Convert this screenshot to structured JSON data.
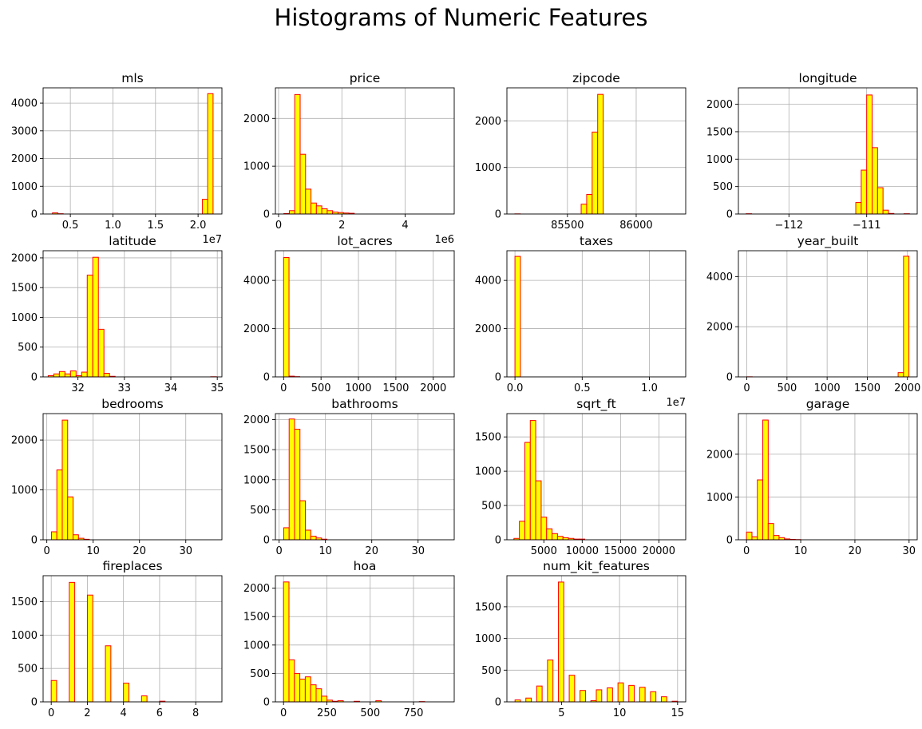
{
  "suptitle": "Histograms of Numeric Features",
  "style": {
    "bar_fill": "#ffff00",
    "bar_edge": "#ff0000",
    "grid_color": "#b0b0b0"
  },
  "chart_data": [
    {
      "type": "bar",
      "title": "mls",
      "grid": true,
      "xlim": [
        0.18,
        2.28
      ],
      "ylim": [
        0,
        4550
      ],
      "offset_text": "1e7",
      "xticks": [
        0.5,
        1.0,
        1.5,
        2.0
      ],
      "xtick_labels": [
        "0.5",
        "1.0",
        "1.5",
        "2.0"
      ],
      "yticks": [
        0,
        1000,
        2000,
        3000,
        4000
      ],
      "ytick_labels": [
        "0",
        "1000",
        "2000",
        "3000",
        "4000"
      ],
      "bin_edges": [
        0.29,
        2.176
      ],
      "bins": [
        [
          0.29,
          0.353,
          40
        ],
        [
          0.353,
          0.416,
          10
        ],
        [
          2.051,
          2.113,
          530
        ],
        [
          2.113,
          2.176,
          4340
        ]
      ]
    },
    {
      "type": "bar",
      "title": "price",
      "grid": true,
      "xlim": [
        -0.1,
        5.55
      ],
      "ylim": [
        0,
        2640
      ],
      "offset_text": "1e6",
      "xticks": [
        0,
        2,
        4
      ],
      "xtick_labels": [
        "0",
        "2",
        "4"
      ],
      "yticks": [
        0,
        1000,
        2000
      ],
      "ytick_labels": [
        "0",
        "1000",
        "2000"
      ],
      "bin_edges": [
        0.169,
        5.3
      ],
      "bins": [
        [
          0.169,
          0.34,
          10
        ],
        [
          0.34,
          0.511,
          70
        ],
        [
          0.511,
          0.682,
          2500
        ],
        [
          0.682,
          0.853,
          1250
        ],
        [
          0.853,
          1.024,
          520
        ],
        [
          1.024,
          1.195,
          230
        ],
        [
          1.195,
          1.366,
          170
        ],
        [
          1.366,
          1.537,
          110
        ],
        [
          1.537,
          1.708,
          70
        ],
        [
          1.708,
          1.879,
          40
        ],
        [
          1.879,
          2.05,
          30
        ],
        [
          2.05,
          2.221,
          20
        ],
        [
          2.221,
          2.392,
          15
        ]
      ]
    },
    {
      "type": "bar",
      "title": "zipcode",
      "grid": true,
      "xlim": [
        85060,
        86360
      ],
      "ylim": [
        0,
        2710
      ],
      "xticks": [
        85500,
        86000
      ],
      "xtick_labels": [
        "85500",
        "86000"
      ],
      "yticks": [
        0,
        1000,
        2000
      ],
      "ytick_labels": [
        "0",
        "1000",
        "2000"
      ],
      "bin_edges": [
        85118,
        86303
      ],
      "bins": [
        [
          85118,
          85157.5,
          3
        ],
        [
          85600,
          85640,
          210
        ],
        [
          85640,
          85680,
          420
        ],
        [
          85680,
          85720,
          1760
        ],
        [
          85720,
          85760,
          2570
        ]
      ]
    },
    {
      "type": "bar",
      "title": "longitude",
      "grid": true,
      "xlim": [
        -112.65,
        -110.35
      ],
      "ylim": [
        0,
        2300
      ],
      "xticks": [
        -112,
        -111,
        -110
      ],
      "xtick_labels": [
        "−112",
        "−111",
        "−110"
      ],
      "yticks": [
        0,
        500,
        1000,
        1500,
        2000
      ],
      "ytick_labels": [
        "0",
        "500",
        "1000",
        "1500",
        "2000"
      ],
      "bin_edges": [
        -112.55,
        -110.45
      ],
      "bins": [
        [
          -112.55,
          -112.48,
          5
        ],
        [
          -111.14,
          -111.07,
          210
        ],
        [
          -111.07,
          -111.0,
          800
        ],
        [
          -111.0,
          -110.93,
          2170
        ],
        [
          -110.93,
          -110.86,
          1210
        ],
        [
          -110.86,
          -110.79,
          480
        ],
        [
          -110.79,
          -110.72,
          70
        ],
        [
          -110.72,
          -110.65,
          10
        ],
        [
          -110.52,
          -110.45,
          5
        ]
      ]
    },
    {
      "type": "bar",
      "title": "latitude",
      "grid": true,
      "xlim": [
        31.25,
        35.1
      ],
      "ylim": [
        0,
        2120
      ],
      "xticks": [
        32,
        33,
        34,
        35
      ],
      "xtick_labels": [
        "32",
        "33",
        "34",
        "35"
      ],
      "yticks": [
        0,
        500,
        1000,
        1500,
        2000
      ],
      "ytick_labels": [
        "0",
        "500",
        "1000",
        "1500",
        "2000"
      ],
      "bin_edges": [
        31.36,
        34.98
      ],
      "bins": [
        [
          31.36,
          31.48,
          20
        ],
        [
          31.48,
          31.6,
          50
        ],
        [
          31.6,
          31.72,
          90
        ],
        [
          31.72,
          31.84,
          50
        ],
        [
          31.84,
          31.96,
          100
        ],
        [
          31.96,
          32.08,
          20
        ],
        [
          32.08,
          32.2,
          80
        ],
        [
          32.2,
          32.32,
          1710
        ],
        [
          32.32,
          32.44,
          2010
        ],
        [
          32.44,
          32.56,
          800
        ],
        [
          32.56,
          32.68,
          60
        ],
        [
          32.68,
          32.8,
          10
        ],
        [
          34.86,
          34.98,
          3
        ]
      ]
    },
    {
      "type": "bar",
      "title": "lot_acres",
      "grid": true,
      "xlim": [
        -110,
        2280
      ],
      "ylim": [
        0,
        5230
      ],
      "xticks": [
        0,
        500,
        1000,
        1500,
        2000
      ],
      "xtick_labels": [
        "0",
        "500",
        "1000",
        "1500",
        "2000"
      ],
      "yticks": [
        0,
        2000,
        4000
      ],
      "ytick_labels": [
        "0",
        "2000",
        "4000"
      ],
      "bin_edges": [
        0,
        2154
      ],
      "bins": [
        [
          0,
          71.8,
          4950
        ],
        [
          71.8,
          143.6,
          30
        ],
        [
          143.6,
          215.4,
          10
        ]
      ]
    },
    {
      "type": "bar",
      "title": "taxes",
      "grid": true,
      "xlim": [
        -0.06,
        1.27
      ],
      "ylim": [
        0,
        5230
      ],
      "offset_text": "1e7",
      "xticks": [
        0,
        0.5,
        1.0
      ],
      "xtick_labels": [
        "0.0",
        "0.5",
        "1.0"
      ],
      "yticks": [
        0,
        2000,
        4000
      ],
      "ytick_labels": [
        "0",
        "2000",
        "4000"
      ],
      "bin_edges": [
        0,
        1.22
      ],
      "bins": [
        [
          0,
          0.0407,
          4995
        ]
      ]
    },
    {
      "type": "bar",
      "title": "year_built",
      "grid": true,
      "xlim": [
        -105,
        2122
      ],
      "ylim": [
        0,
        5030
      ],
      "xticks": [
        0,
        500,
        1000,
        1500,
        2000
      ],
      "xtick_labels": [
        "0",
        "500",
        "1000",
        "1500",
        "2000"
      ],
      "yticks": [
        0,
        2000,
        4000
      ],
      "ytick_labels": [
        "0",
        "2000",
        "4000"
      ],
      "bin_edges": [
        0,
        2019
      ],
      "bins": [
        [
          0,
          67.3,
          5
        ],
        [
          1884.4,
          1951.7,
          170
        ],
        [
          1951.7,
          2019,
          4810
        ]
      ]
    },
    {
      "type": "bar",
      "title": "bedrooms",
      "grid": true,
      "xlim": [
        -0.8,
        37.8
      ],
      "ylim": [
        0,
        2530
      ],
      "xticks": [
        0,
        10,
        20,
        30
      ],
      "xtick_labels": [
        "0",
        "10",
        "20",
        "30"
      ],
      "yticks": [
        0,
        1000,
        2000
      ],
      "ytick_labels": [
        "0",
        "1000",
        "2000"
      ],
      "bin_edges": [
        1,
        36
      ],
      "bins": [
        [
          1,
          2.167,
          160
        ],
        [
          2.167,
          3.333,
          1400
        ],
        [
          3.333,
          4.5,
          2400
        ],
        [
          4.5,
          5.667,
          860
        ],
        [
          5.667,
          6.833,
          100
        ],
        [
          6.833,
          8.0,
          30
        ],
        [
          8.0,
          9.167,
          10
        ]
      ]
    },
    {
      "type": "bar",
      "title": "bathrooms",
      "grid": true,
      "xlim": [
        -0.8,
        37.8
      ],
      "ylim": [
        0,
        2100
      ],
      "xticks": [
        0,
        10,
        20,
        30
      ],
      "xtick_labels": [
        "0",
        "10",
        "20",
        "30"
      ],
      "yticks": [
        0,
        500,
        1000,
        1500,
        2000
      ],
      "ytick_labels": [
        "0",
        "500",
        "1000",
        "1500",
        "2000"
      ],
      "bin_edges": [
        1,
        36
      ],
      "bins": [
        [
          1,
          2.167,
          200
        ],
        [
          2.167,
          3.333,
          2010
        ],
        [
          3.333,
          4.5,
          1840
        ],
        [
          4.5,
          5.667,
          650
        ],
        [
          5.667,
          6.833,
          160
        ],
        [
          6.833,
          8.0,
          60
        ],
        [
          8.0,
          9.167,
          30
        ],
        [
          9.167,
          10.333,
          10
        ]
      ]
    },
    {
      "type": "bar",
      "title": "sqrt_ft",
      "grid": true,
      "xlim": [
        180,
        23500
      ],
      "ylim": [
        0,
        1840
      ],
      "xticks": [
        5000,
        10000,
        15000,
        20000
      ],
      "xtick_labels": [
        "5000",
        "10000",
        "15000",
        "20000"
      ],
      "yticks": [
        0,
        500,
        1000,
        1500
      ],
      "ytick_labels": [
        "0",
        "500",
        "1000",
        "1500"
      ],
      "bin_edges": [
        1100,
        22400
      ],
      "bins": [
        [
          1100,
          1810,
          20
        ],
        [
          1810,
          2520,
          270
        ],
        [
          2520,
          3230,
          1420
        ],
        [
          3230,
          3940,
          1740
        ],
        [
          3940,
          4650,
          860
        ],
        [
          4650,
          5360,
          330
        ],
        [
          5360,
          6070,
          160
        ],
        [
          6070,
          6780,
          90
        ],
        [
          6780,
          7490,
          50
        ],
        [
          7490,
          8200,
          30
        ],
        [
          8200,
          8910,
          20
        ],
        [
          8910,
          9620,
          10
        ],
        [
          9620,
          10330,
          10
        ]
      ]
    },
    {
      "type": "bar",
      "title": "garage",
      "grid": true,
      "xlim": [
        -1.5,
        31.5
      ],
      "ylim": [
        0,
        2950
      ],
      "xticks": [
        0,
        10,
        20,
        30
      ],
      "xtick_labels": [
        "0",
        "10",
        "20",
        "30"
      ],
      "yticks": [
        0,
        1000,
        2000
      ],
      "ytick_labels": [
        "0",
        "1000",
        "2000"
      ],
      "bin_edges": [
        0,
        30
      ],
      "bins": [
        [
          0,
          1,
          180
        ],
        [
          1,
          2,
          70
        ],
        [
          2,
          3,
          1400
        ],
        [
          3,
          4,
          2800
        ],
        [
          4,
          5,
          380
        ],
        [
          5,
          6,
          100
        ],
        [
          6,
          7,
          50
        ],
        [
          7,
          8,
          20
        ],
        [
          8,
          9,
          10
        ],
        [
          9,
          10,
          5
        ]
      ]
    },
    {
      "type": "bar",
      "title": "fireplaces",
      "grid": true,
      "xlim": [
        -0.45,
        9.45
      ],
      "ylim": [
        0,
        1890
      ],
      "xticks": [
        0,
        2,
        4,
        6,
        8
      ],
      "xtick_labels": [
        "0",
        "2",
        "4",
        "6",
        "8"
      ],
      "yticks": [
        0,
        500,
        1000,
        1500
      ],
      "ytick_labels": [
        "0",
        "500",
        "1000",
        "1500"
      ],
      "bin_edges": [
        0,
        9
      ],
      "bins": [
        [
          0,
          0.3,
          320
        ],
        [
          1,
          1.3,
          1790
        ],
        [
          2,
          2.3,
          1600
        ],
        [
          3,
          3.3,
          840
        ],
        [
          4,
          4.3,
          280
        ],
        [
          5,
          5.3,
          90
        ],
        [
          6,
          6.3,
          10
        ]
      ]
    },
    {
      "type": "bar",
      "title": "hoa",
      "grid": true,
      "xlim": [
        -47,
        985
      ],
      "ylim": [
        0,
        2220
      ],
      "xticks": [
        0,
        250,
        500,
        750
      ],
      "xtick_labels": [
        "0",
        "250",
        "500",
        "750"
      ],
      "yticks": [
        0,
        500,
        1000,
        1500,
        2000
      ],
      "ytick_labels": [
        "0",
        "500",
        "1000",
        "1500",
        "2000"
      ],
      "bin_edges": [
        0,
        940
      ],
      "bins": [
        [
          0,
          31.3,
          2110
        ],
        [
          31.3,
          62.7,
          740
        ],
        [
          62.7,
          94,
          500
        ],
        [
          94,
          125.3,
          400
        ],
        [
          125.3,
          156.7,
          440
        ],
        [
          156.7,
          188,
          300
        ],
        [
          188,
          219.3,
          230
        ],
        [
          219.3,
          250.7,
          100
        ],
        [
          250.7,
          282,
          30
        ],
        [
          282,
          313.3,
          10
        ],
        [
          313.3,
          344.7,
          20
        ],
        [
          407.3,
          438.7,
          10
        ],
        [
          532.7,
          564,
          20
        ],
        [
          783.3,
          814.7,
          5
        ]
      ]
    },
    {
      "type": "bar",
      "title": "num_kit_features",
      "grid": true,
      "xlim": [
        0.3,
        15.7
      ],
      "ylim": [
        0,
        1990
      ],
      "xticks": [
        5,
        10,
        15
      ],
      "xtick_labels": [
        "5",
        "10",
        "15"
      ],
      "yticks": [
        0,
        500,
        1000,
        1500
      ],
      "ytick_labels": [
        "0",
        "500",
        "1000",
        "1500"
      ],
      "bin_edges": [
        1,
        15
      ],
      "bins": [
        [
          1,
          1.467,
          30
        ],
        [
          1.933,
          2.4,
          60
        ],
        [
          2.867,
          3.333,
          250
        ],
        [
          3.8,
          4.267,
          660
        ],
        [
          4.733,
          5.2,
          1890
        ],
        [
          5.667,
          6.133,
          420
        ],
        [
          6.6,
          7.067,
          180
        ],
        [
          7.533,
          8.0,
          20
        ],
        [
          8.0,
          8.467,
          190
        ],
        [
          8.933,
          9.4,
          220
        ],
        [
          9.867,
          10.333,
          300
        ],
        [
          10.8,
          11.267,
          260
        ],
        [
          11.733,
          12.2,
          230
        ],
        [
          12.667,
          13.133,
          160
        ],
        [
          13.6,
          14.067,
          80
        ],
        [
          14.533,
          15.0,
          10
        ]
      ]
    }
  ]
}
